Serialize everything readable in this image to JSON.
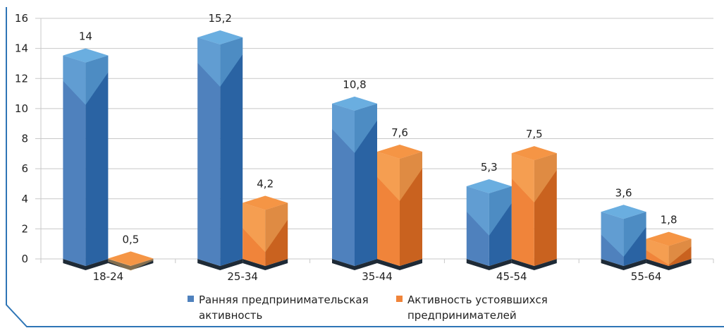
{
  "chart_data": {
    "type": "bar",
    "style": "3d-column",
    "title": "",
    "xlabel": "",
    "ylabel": "",
    "categories": [
      "18-24",
      "25-34",
      "35-44",
      "45-54",
      "55-64"
    ],
    "series": [
      {
        "name": "Ранняя предпринимательская активность",
        "legend_lines": [
          "Ранняя предпринимательская",
          "активность"
        ],
        "color": "#4f81bd",
        "values": [
          14,
          15.2,
          10.8,
          5.3,
          3.6
        ],
        "labels": [
          "14",
          "15,2",
          "10,8",
          "5,3",
          "3,6"
        ]
      },
      {
        "name": "Активность устоявшихся предпринимателей",
        "legend_lines": [
          "Активность устоявшихся",
          "предпринимателей"
        ],
        "color": "#f0843a",
        "values": [
          0.5,
          4.2,
          7.6,
          7.5,
          1.8
        ],
        "labels": [
          "0,5",
          "4,2",
          "7,6",
          "7,5",
          "1,8"
        ]
      }
    ],
    "ylim": [
      0,
      16
    ],
    "yticks": [
      0,
      2,
      4,
      6,
      8,
      10,
      12,
      14,
      16
    ],
    "grid": true,
    "legend_position": "bottom"
  }
}
